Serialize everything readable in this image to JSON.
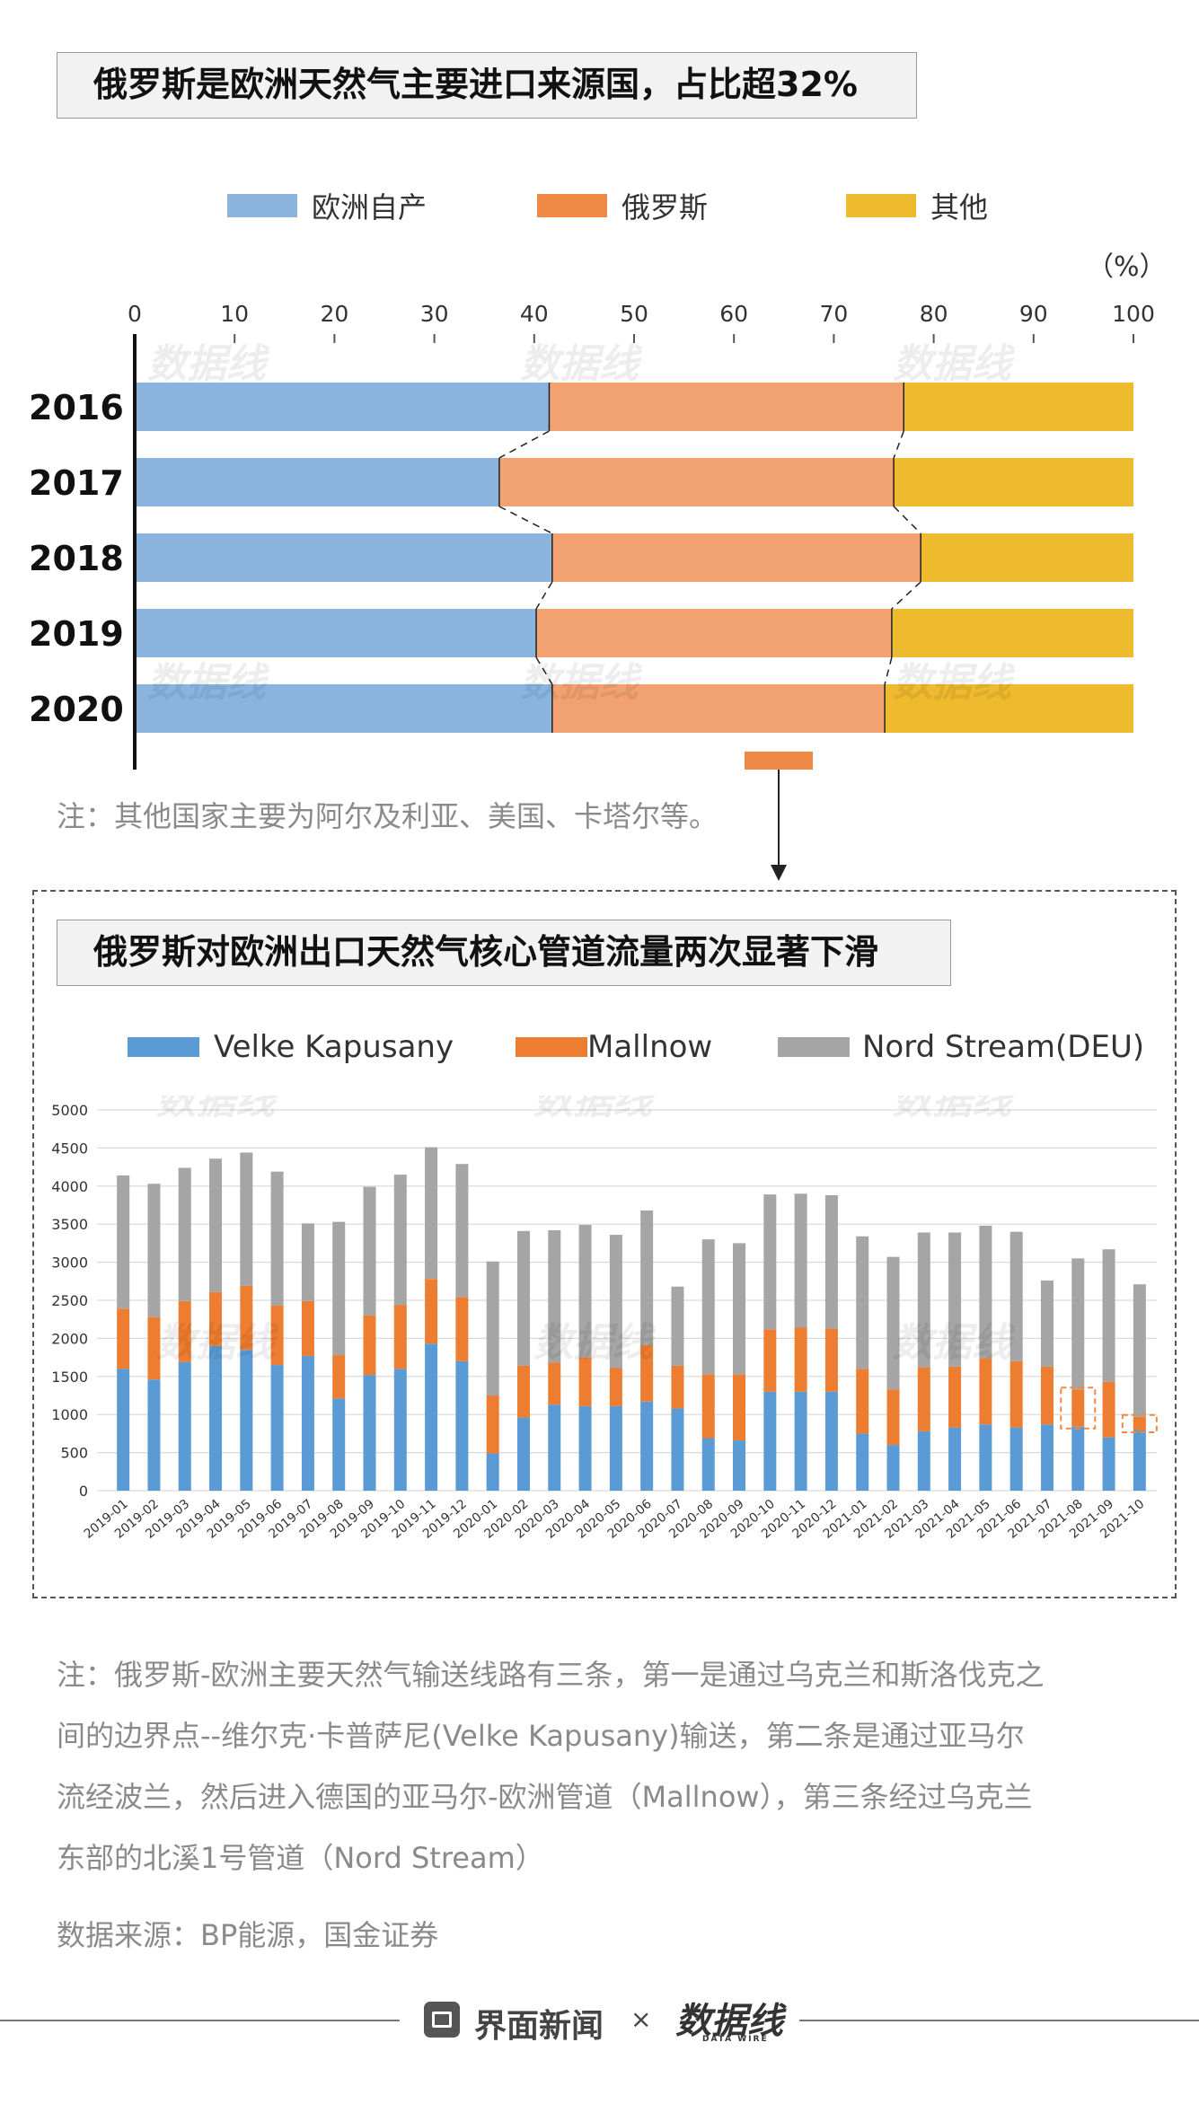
{
  "chart1": {
    "title": "俄罗斯是欧洲天然气主要进口来源国，占比超32%",
    "legend": [
      "欧洲自产",
      "俄罗斯",
      "其他"
    ],
    "unit": "（%）",
    "note": "注：其他国家主要为阿尔及利亚、美国、卡塔尔等。"
  },
  "chart2": {
    "title": "俄罗斯对欧洲出口天然气核心管道流量两次显著下滑",
    "legend": [
      "Velke Kapusany",
      "Mallnow",
      "Nord Stream(DEU)"
    ]
  },
  "notes": {
    "line1": "注：俄罗斯-欧洲主要天然气输送线路有三条，第一是通过乌克兰和斯洛伐克之",
    "line2": "间的边界点--维尔克·卡普萨尼(Velke Kapusany)输送，第二条是通过亚马尔",
    "line3": "流经波兰，然后进入德国的亚马尔-欧洲管道（Mallnow），第三条经过乌克兰",
    "line4": "东部的北溪1号管道（Nord Stream）",
    "source": "数据来源：BP能源，国金证券"
  },
  "footer": {
    "brand1": "界面新闻",
    "times": "×",
    "brand2": "数据线",
    "brand2_sub": "DATA WIRE"
  },
  "watermark": "数据线",
  "colors": {
    "blue": "#8ab4de",
    "orange": "#f2a271",
    "yellow": "#eeba2e",
    "blue2": "#5b9bd5",
    "orange2": "#ed7d31",
    "gray2": "#a5a5a5",
    "accent": "#ee8a45"
  },
  "chart_data": [
    {
      "type": "bar",
      "orientation": "horizontal",
      "stacked": true,
      "title": "俄罗斯是欧洲天然气主要进口来源国，占比超32%",
      "categories": [
        "2016",
        "2017",
        "2018",
        "2019",
        "2020"
      ],
      "series": [
        {
          "name": "欧洲自产",
          "values": [
            41.5,
            36.5,
            41.8,
            40.2,
            41.8
          ]
        },
        {
          "name": "俄罗斯",
          "values": [
            35.5,
            39.5,
            36.9,
            35.6,
            33.3
          ]
        },
        {
          "name": "其他",
          "values": [
            23.0,
            24.0,
            21.3,
            24.2,
            24.9
          ]
        }
      ],
      "xlim": [
        0,
        100
      ],
      "xticks": [
        0,
        10,
        20,
        30,
        40,
        50,
        60,
        70,
        80,
        90,
        100
      ],
      "unit": "（%）",
      "legend_position": "top"
    },
    {
      "type": "bar",
      "stacked": true,
      "title": "俄罗斯对欧洲出口天然气核心管道流量两次显著下滑",
      "categories": [
        "2019-01",
        "2019-02",
        "2019-03",
        "2019-04",
        "2019-05",
        "2019-06",
        "2019-07",
        "2019-08",
        "2019-09",
        "2019-10",
        "2019-11",
        "2019-12",
        "2020-01",
        "2020-02",
        "2020-03",
        "2020-04",
        "2020-05",
        "2020-06",
        "2020-07",
        "2020-08",
        "2020-09",
        "2020-10",
        "2020-11",
        "2020-12",
        "2021-01",
        "2021-02",
        "2021-03",
        "2021-04",
        "2021-05",
        "2021-06",
        "2021-07",
        "2021-08",
        "2021-09",
        "2021-10"
      ],
      "series": [
        {
          "name": "Velke Kapusany",
          "values": [
            1600,
            1460,
            1690,
            1900,
            1850,
            1650,
            1770,
            1210,
            1520,
            1600,
            1930,
            1700,
            490,
            960,
            1130,
            1110,
            1110,
            1170,
            1080,
            690,
            660,
            1300,
            1300,
            1300,
            750,
            600,
            780,
            830,
            870,
            830,
            870,
            840,
            700,
            790
          ]
        },
        {
          "name": "Mallnow",
          "values": [
            790,
            820,
            800,
            710,
            840,
            780,
            720,
            570,
            780,
            840,
            850,
            840,
            760,
            680,
            550,
            640,
            500,
            740,
            560,
            840,
            870,
            820,
            840,
            830,
            850,
            730,
            840,
            800,
            870,
            870,
            760,
            490,
            730,
            180
          ]
        },
        {
          "name": "Nord Stream(DEU)",
          "values": [
            1750,
            1750,
            1750,
            1750,
            1750,
            1760,
            1020,
            1750,
            1690,
            1710,
            1730,
            1750,
            1760,
            1770,
            1740,
            1740,
            1750,
            1770,
            1040,
            1770,
            1720,
            1770,
            1760,
            1750,
            1740,
            1740,
            1770,
            1760,
            1740,
            1700,
            1130,
            1720,
            1740,
            1740
          ]
        }
      ],
      "ylim": [
        0,
        5000
      ],
      "yticks": [
        0,
        500,
        1000,
        1500,
        2000,
        2500,
        3000,
        3500,
        4000,
        4500,
        5000
      ],
      "legend_position": "top"
    }
  ]
}
